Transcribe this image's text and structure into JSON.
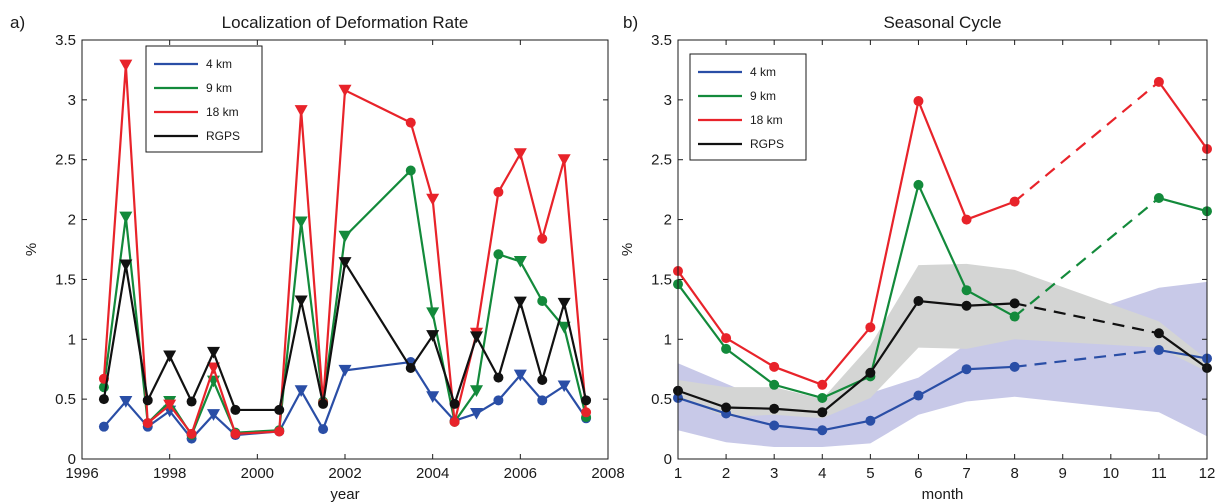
{
  "colors": {
    "blue": "#2a4ea6",
    "green": "#138a3b",
    "red": "#e8232a",
    "black": "#111111",
    "gray_band": "#d4d5d4",
    "blue_band": "#c8c9e8"
  },
  "chart_data": [
    {
      "panel_letter": "a)",
      "type": "line",
      "title": "Localization of Deformation Rate",
      "xlabel": "year",
      "ylabel": "%",
      "xlim": [
        1996,
        2008
      ],
      "ylim": [
        0,
        3.5
      ],
      "xticks": [
        1996,
        1998,
        2000,
        2002,
        2004,
        2006,
        2008
      ],
      "yticks": [
        0,
        0.5,
        1,
        1.5,
        2,
        2.5,
        3,
        3.5
      ],
      "ytick_labels": [
        "0",
        "0.5",
        "1",
        "1.5",
        "2",
        "2.5",
        "3",
        "3.5"
      ],
      "grid": false,
      "legend_position": "top-left",
      "legend": [
        "4 km",
        "9 km",
        "18 km",
        "RGPS"
      ],
      "x": [
        1996.5,
        1997.0,
        1997.5,
        1998.0,
        1998.5,
        1999.0,
        1999.5,
        2000.5,
        2001.0,
        2001.5,
        2002.0,
        2003.5,
        2004.0,
        2004.5,
        2005.0,
        2005.5,
        2006.0,
        2006.5,
        2007.0,
        2007.5
      ],
      "markers": [
        "o",
        "v",
        "o",
        "v",
        "o",
        "v",
        "o",
        "o",
        "v",
        "o",
        "v",
        "o",
        "v",
        "o",
        "v",
        "o",
        "v",
        "o",
        "v",
        "o"
      ],
      "series": [
        {
          "name": "4 km",
          "color": "#2a4ea6",
          "values": [
            0.27,
            0.48,
            0.27,
            0.4,
            0.17,
            0.37,
            0.2,
            0.23,
            0.57,
            0.25,
            0.74,
            0.81,
            0.52,
            0.32,
            0.38,
            0.49,
            0.7,
            0.49,
            0.61,
            0.34
          ]
        },
        {
          "name": "9 km",
          "color": "#138a3b",
          "values": [
            0.6,
            2.02,
            0.3,
            0.48,
            0.2,
            0.65,
            0.22,
            0.24,
            1.98,
            0.48,
            1.86,
            2.41,
            1.22,
            0.31,
            0.57,
            1.71,
            1.65,
            1.32,
            1.1,
            0.35
          ]
        },
        {
          "name": "18 km",
          "color": "#e8232a",
          "values": [
            0.67,
            3.29,
            0.3,
            0.45,
            0.21,
            0.76,
            0.21,
            0.23,
            2.91,
            0.47,
            3.08,
            2.81,
            2.17,
            0.31,
            1.05,
            2.23,
            2.55,
            1.84,
            2.5,
            0.39
          ]
        },
        {
          "name": "RGPS",
          "color": "#111111",
          "values": [
            0.5,
            1.62,
            0.49,
            0.86,
            0.48,
            0.89,
            0.41,
            0.41,
            1.32,
            0.46,
            1.64,
            0.76,
            1.03,
            0.46,
            1.02,
            0.68,
            1.31,
            0.66,
            1.3,
            0.49
          ]
        }
      ]
    },
    {
      "panel_letter": "b)",
      "type": "line",
      "title": "Seasonal Cycle",
      "xlabel": "month",
      "ylabel": "%",
      "xlim": [
        1,
        12
      ],
      "ylim": [
        0,
        3.5
      ],
      "xticks": [
        1,
        2,
        3,
        4,
        5,
        6,
        7,
        8,
        9,
        10,
        11,
        12
      ],
      "yticks": [
        0,
        0.5,
        1,
        1.5,
        2,
        2.5,
        3,
        3.5
      ],
      "ytick_labels": [
        "0",
        "0.5",
        "1",
        "1.5",
        "2",
        "2.5",
        "3",
        "3.5"
      ],
      "grid": false,
      "legend_position": "top-left",
      "legend": [
        "4 km",
        "9 km",
        "18 km",
        "RGPS"
      ],
      "x": [
        1,
        2,
        3,
        4,
        5,
        6,
        7,
        8,
        11,
        12
      ],
      "dashed_gap": [
        8,
        11
      ],
      "series": [
        {
          "name": "4 km",
          "color": "#2a4ea6",
          "values": [
            0.51,
            0.38,
            0.28,
            0.24,
            0.32,
            0.53,
            0.75,
            0.77,
            0.91,
            0.84
          ]
        },
        {
          "name": "9 km",
          "color": "#138a3b",
          "values": [
            1.46,
            0.92,
            0.62,
            0.51,
            0.69,
            2.29,
            1.41,
            1.19,
            2.18,
            2.07
          ]
        },
        {
          "name": "18 km",
          "color": "#e8232a",
          "values": [
            1.57,
            1.01,
            0.77,
            0.62,
            1.1,
            2.99,
            2.0,
            2.15,
            3.15,
            2.59
          ]
        },
        {
          "name": "RGPS",
          "color": "#111111",
          "values": [
            0.57,
            0.43,
            0.42,
            0.39,
            0.72,
            1.32,
            1.28,
            1.3,
            1.05,
            0.76
          ]
        }
      ],
      "bands": [
        {
          "color": "#c8c9e8",
          "x": [
            1,
            2,
            3,
            4,
            5,
            6,
            7,
            8,
            11,
            12
          ],
          "lower": [
            0.24,
            0.14,
            0.1,
            0.1,
            0.13,
            0.37,
            0.48,
            0.52,
            0.39,
            0.19
          ],
          "upper": [
            0.8,
            0.63,
            0.46,
            0.4,
            0.55,
            0.68,
            0.96,
            1.03,
            1.43,
            1.48
          ]
        },
        {
          "color": "#d4d5d4",
          "x": [
            1,
            2,
            3,
            4,
            5,
            6,
            7,
            8,
            11,
            12
          ],
          "lower": [
            0.52,
            0.35,
            0.37,
            0.34,
            0.51,
            0.93,
            0.92,
            1.0,
            0.93,
            0.73
          ],
          "upper": [
            0.66,
            0.6,
            0.6,
            0.5,
            0.95,
            1.62,
            1.63,
            1.58,
            1.15,
            0.83
          ]
        }
      ]
    }
  ]
}
